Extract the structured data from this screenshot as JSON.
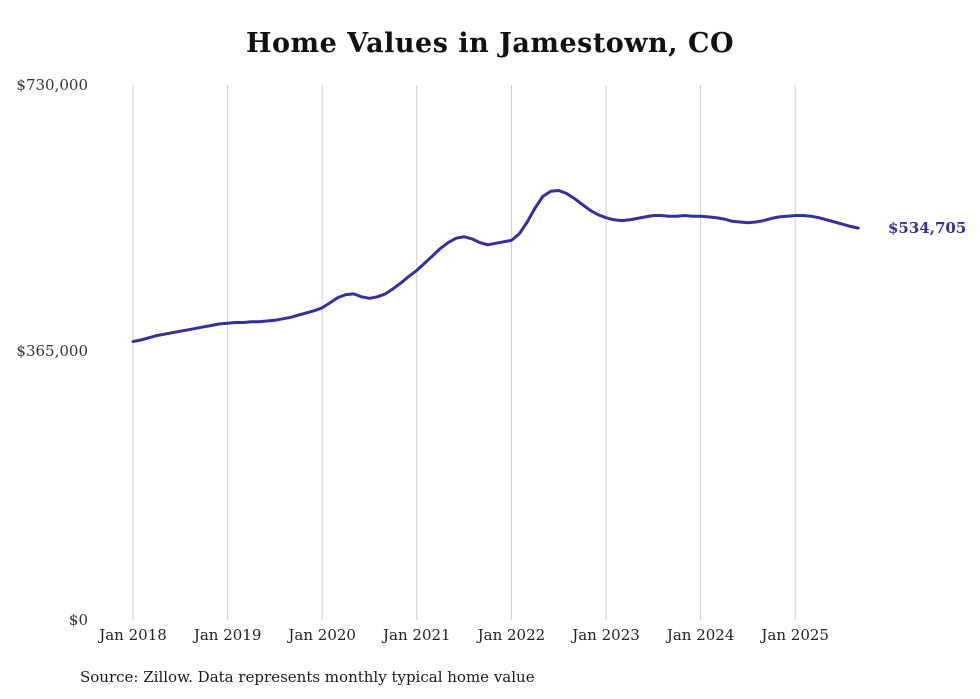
{
  "title": "Home Values in Jamestown, CO",
  "source_note": "Source: Zillow. Data represents monthly typical home value",
  "end_label": "$534,705",
  "colors": {
    "line": "#34309f",
    "grid": "#cccccc",
    "end_label": "#34309f"
  },
  "chart_data": {
    "type": "line",
    "title": "Home Values in Jamestown, CO",
    "xlabel": "",
    "ylabel": "",
    "ylim": [
      0,
      730000
    ],
    "y_tick_labels": [
      "$730,000",
      "$365,000",
      "$0"
    ],
    "y_tick_values": [
      730000,
      365000,
      0
    ],
    "x_tick_labels": [
      "Jan 2018",
      "Jan 2019",
      "Jan 2020",
      "Jan 2021",
      "Jan 2022",
      "Jan 2023",
      "Jan 2024",
      "Jan 2025"
    ],
    "grid": "vertical-only",
    "legend": "none",
    "series": [
      {
        "name": "Typical home value",
        "color": "#34309f",
        "x_start": "2018-01",
        "frequency": "monthly",
        "final_value": 534705,
        "final_value_label": "$534,705",
        "values": [
          380000,
          382000,
          385000,
          388000,
          390000,
          392000,
          394000,
          396000,
          398000,
          400000,
          402000,
          404000,
          405000,
          406000,
          406000,
          407000,
          407000,
          408000,
          409000,
          411000,
          413000,
          416000,
          419000,
          422000,
          426000,
          433000,
          440000,
          444000,
          445000,
          441000,
          439000,
          441000,
          445000,
          452000,
          460000,
          469000,
          477000,
          487000,
          497000,
          507000,
          515000,
          521000,
          523000,
          520000,
          515000,
          512000,
          514000,
          516000,
          518000,
          527000,
          543000,
          562000,
          578000,
          585000,
          586000,
          582000,
          575000,
          567000,
          559000,
          553000,
          549000,
          546000,
          545000,
          546000,
          548000,
          550000,
          552000,
          552000,
          551000,
          551000,
          552000,
          551000,
          551000,
          550000,
          549000,
          547000,
          544000,
          543000,
          542000,
          543000,
          545000,
          548000,
          550000,
          551000,
          552000,
          552000,
          551000,
          549000,
          546000,
          543000,
          540000,
          537000,
          534705
        ]
      }
    ]
  }
}
